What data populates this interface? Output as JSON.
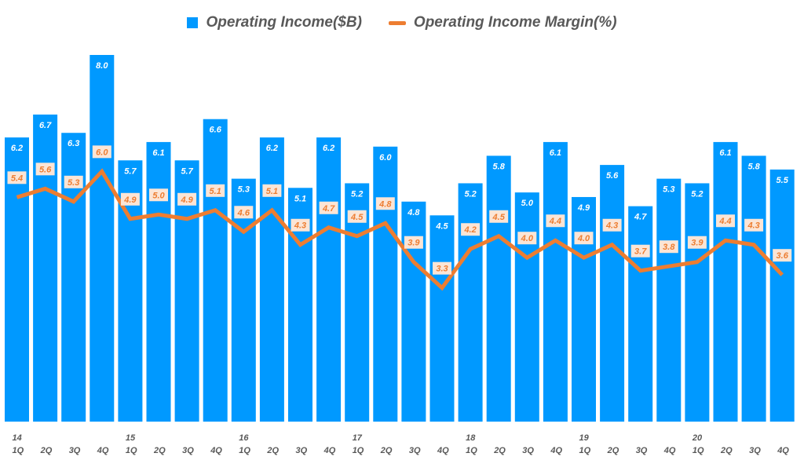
{
  "chart_data": {
    "type": "bar+line",
    "title": "",
    "legend_position": "top",
    "grid": false,
    "categories": [
      "1Q",
      "2Q",
      "3Q",
      "4Q",
      "1Q",
      "2Q",
      "3Q",
      "4Q",
      "1Q",
      "2Q",
      "3Q",
      "4Q",
      "1Q",
      "2Q",
      "3Q",
      "4Q",
      "1Q",
      "2Q",
      "3Q",
      "4Q",
      "1Q",
      "2Q",
      "3Q",
      "4Q",
      "1Q",
      "2Q",
      "3Q",
      "4Q"
    ],
    "year_labels": [
      "14",
      "",
      "",
      "",
      "15",
      "",
      "",
      "",
      "16",
      "",
      "",
      "",
      "17",
      "",
      "",
      "",
      "18",
      "",
      "",
      "",
      "19",
      "",
      "",
      "",
      "20",
      "",
      "",
      ""
    ],
    "series": [
      {
        "name": "Operating Income($B)",
        "type": "bar",
        "color": "#0099ff",
        "ylim": [
          0,
          8
        ],
        "values": [
          6.2,
          6.7,
          6.3,
          8.0,
          5.7,
          6.1,
          5.7,
          6.6,
          5.3,
          6.2,
          5.1,
          6.2,
          5.2,
          6.0,
          4.8,
          4.5,
          5.2,
          5.8,
          5.0,
          6.1,
          4.9,
          5.6,
          4.7,
          5.3,
          5.2,
          6.1,
          5.8,
          5.5
        ],
        "labels": [
          "6.2",
          "6.7",
          "6.3",
          "8.0",
          "5.7",
          "6.1",
          "5.7",
          "6.6",
          "5.3",
          "6.2",
          "5.1",
          "6.2",
          "5.2",
          "6.0",
          "4.8",
          "4.5",
          "5.2",
          "5.8",
          "5.0",
          "6.1",
          "4.9",
          "5.6",
          "4.7",
          "5.3",
          "5.2",
          "6.1",
          "5.8",
          "5.5"
        ]
      },
      {
        "name": "Operating Income Margin(%)",
        "type": "line",
        "color": "#ed7d31",
        "ylim": [
          0.2,
          8.7
        ],
        "values": [
          5.4,
          5.6,
          5.3,
          6.0,
          4.9,
          5.0,
          4.9,
          5.1,
          4.6,
          5.1,
          4.3,
          4.7,
          4.5,
          4.8,
          3.9,
          3.3,
          4.2,
          4.5,
          4.0,
          4.4,
          4.0,
          4.3,
          3.7,
          3.8,
          3.9,
          4.4,
          4.3,
          3.6
        ],
        "labels": [
          "5.4",
          "5.6",
          "5.3",
          "6.0",
          "4.9",
          "5.0",
          "4.9",
          "5.1",
          "4.6",
          "5.1",
          "4.3",
          "4.7",
          "4.5",
          "4.8",
          "3.9",
          "3.3",
          "4.2",
          "4.5",
          "4.0",
          "4.4",
          "4.0",
          "4.3",
          "3.7",
          "3.8",
          "3.9",
          "4.4",
          "4.3",
          "3.6"
        ]
      }
    ]
  }
}
